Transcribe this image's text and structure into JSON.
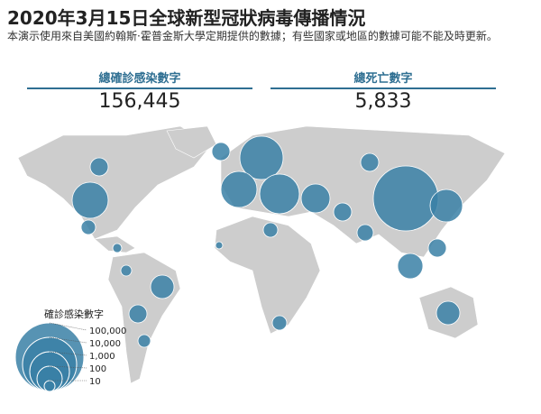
{
  "header": {
    "title": "2020年3月15日全球新型冠狀病毒傳播情況",
    "subtitle": "本演示使用來自美國約翰斯·霍普金斯大學定期提供的數據；有些國家或地區的數據可能不能及時更新。"
  },
  "stats": [
    {
      "label": "總確診感染數字",
      "value": "156,445"
    },
    {
      "label": "總死亡數字",
      "value": "5,833"
    }
  ],
  "legend": {
    "title": "確診感染數字",
    "sizes": [
      {
        "value": 100000,
        "label": "100,000"
      },
      {
        "value": 10000,
        "label": "10,000"
      },
      {
        "value": 1000,
        "label": "1,000"
      },
      100,
      10
    ]
  }
}
